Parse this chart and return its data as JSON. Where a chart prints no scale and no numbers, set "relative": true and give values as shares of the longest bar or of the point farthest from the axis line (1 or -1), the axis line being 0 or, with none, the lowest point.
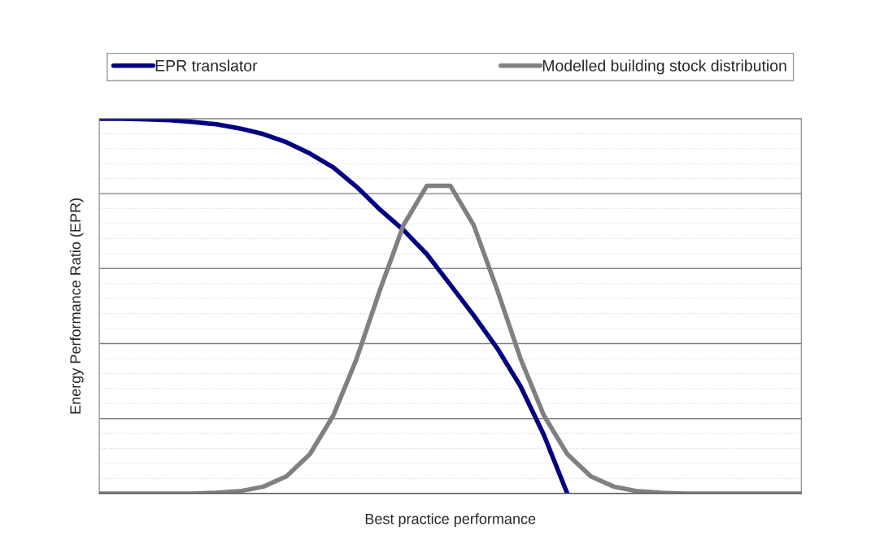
{
  "chart_data": {
    "type": "line",
    "relative": true,
    "xlabel": "Best practice performance",
    "ylabel": "Energy Performance Ratio (EPR)",
    "categories": [
      null,
      null,
      null,
      null,
      null,
      null,
      null,
      null,
      null,
      null,
      null,
      null,
      null,
      null,
      null,
      null,
      null,
      null,
      null,
      null,
      null,
      null,
      null,
      null,
      null,
      null,
      null,
      null,
      null,
      null,
      null
    ],
    "series": [
      {
        "name": "EPR translator",
        "color": "#000080",
        "values": [
          1.0,
          1.0,
          0.998,
          0.996,
          0.991,
          0.985,
          0.974,
          0.959,
          0.937,
          0.907,
          0.87,
          0.818,
          0.757,
          0.703,
          0.638,
          0.557,
          0.475,
          0.388,
          0.286,
          0.156,
          0.0,
          null,
          null,
          null,
          null,
          null,
          null,
          null,
          null,
          null,
          null
        ]
      },
      {
        "name": "Modelled building stock distribution",
        "color": "#808080",
        "values": [
          0,
          0,
          0,
          0,
          0,
          0.002,
          0.006,
          0.018,
          0.046,
          0.105,
          0.208,
          0.36,
          0.544,
          0.716,
          0.821,
          0.821,
          0.716,
          0.544,
          0.36,
          0.208,
          0.105,
          0.046,
          0.018,
          0.006,
          0.002,
          0,
          0,
          0,
          0,
          0,
          0
        ]
      }
    ],
    "grid": "y",
    "legend": "top",
    "marker": "none",
    "line_style": "solid"
  }
}
